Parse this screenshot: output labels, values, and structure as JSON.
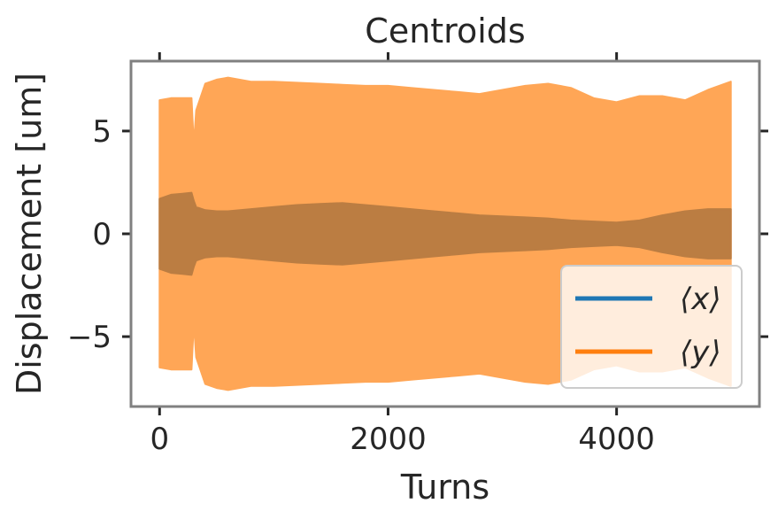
{
  "chart_data": {
    "type": "area",
    "title": "Centroids",
    "xlabel": "Turns",
    "ylabel": "Displacement [um]",
    "xlim": [
      -250,
      5250
    ],
    "ylim": [
      -8.4,
      8.4
    ],
    "xticks": [
      0,
      2000,
      4000
    ],
    "xtick_labels": [
      "0",
      "2000",
      "4000"
    ],
    "yticks": [
      5,
      0,
      -5
    ],
    "ytick_labels": [
      "5",
      "0",
      "−5"
    ],
    "grid": false,
    "legend_position": "lower-right",
    "series": [
      {
        "name": "⟨x⟩",
        "color": "#1f77b4",
        "render_color": "#bb7d42",
        "turns": [
          0,
          100,
          200,
          280,
          300,
          320,
          400,
          500,
          600,
          800,
          1000,
          1200,
          1400,
          1600,
          1800,
          2000,
          2200,
          2400,
          2600,
          2800,
          3000,
          3200,
          3400,
          3600,
          3800,
          4000,
          4200,
          4400,
          4600,
          4800,
          5000
        ],
        "envelope_upper": [
          1.7,
          1.9,
          1.95,
          2.0,
          1.6,
          1.3,
          1.15,
          1.1,
          1.1,
          1.2,
          1.3,
          1.4,
          1.45,
          1.5,
          1.4,
          1.3,
          1.2,
          1.1,
          1.0,
          0.9,
          0.85,
          0.8,
          0.75,
          0.65,
          0.6,
          0.55,
          0.65,
          0.9,
          1.1,
          1.2,
          1.2
        ],
        "envelope_lower": [
          -1.7,
          -1.9,
          -1.95,
          -2.0,
          -1.6,
          -1.3,
          -1.15,
          -1.1,
          -1.1,
          -1.2,
          -1.3,
          -1.4,
          -1.45,
          -1.5,
          -1.4,
          -1.3,
          -1.2,
          -1.1,
          -1.0,
          -0.9,
          -0.85,
          -0.8,
          -0.75,
          -0.65,
          -0.6,
          -0.55,
          -0.65,
          -0.9,
          -1.1,
          -1.2,
          -1.2
        ]
      },
      {
        "name": "⟨y⟩",
        "color": "#ff7f0e",
        "render_color": "#ffa656",
        "turns": [
          0,
          100,
          200,
          280,
          300,
          320,
          400,
          500,
          600,
          800,
          1000,
          1200,
          1400,
          1600,
          1800,
          2000,
          2200,
          2400,
          2600,
          2800,
          3000,
          3200,
          3400,
          3600,
          3800,
          4000,
          4200,
          4400,
          4600,
          4800,
          5000
        ],
        "envelope_upper": [
          6.5,
          6.6,
          6.6,
          6.6,
          4.3,
          6.0,
          7.3,
          7.5,
          7.6,
          7.4,
          7.4,
          7.35,
          7.3,
          7.25,
          7.2,
          7.2,
          7.1,
          7.0,
          6.9,
          6.8,
          7.0,
          7.2,
          7.3,
          7.1,
          6.6,
          6.4,
          6.7,
          6.7,
          6.5,
          7.0,
          7.4
        ],
        "envelope_lower": [
          -6.5,
          -6.6,
          -6.6,
          -6.6,
          -4.3,
          -6.0,
          -7.3,
          -7.5,
          -7.6,
          -7.4,
          -7.4,
          -7.35,
          -7.3,
          -7.25,
          -7.2,
          -7.2,
          -7.1,
          -7.0,
          -6.9,
          -6.8,
          -7.0,
          -7.2,
          -7.3,
          -7.1,
          -6.6,
          -6.4,
          -6.7,
          -6.7,
          -6.5,
          -7.0,
          -7.4
        ]
      }
    ]
  }
}
